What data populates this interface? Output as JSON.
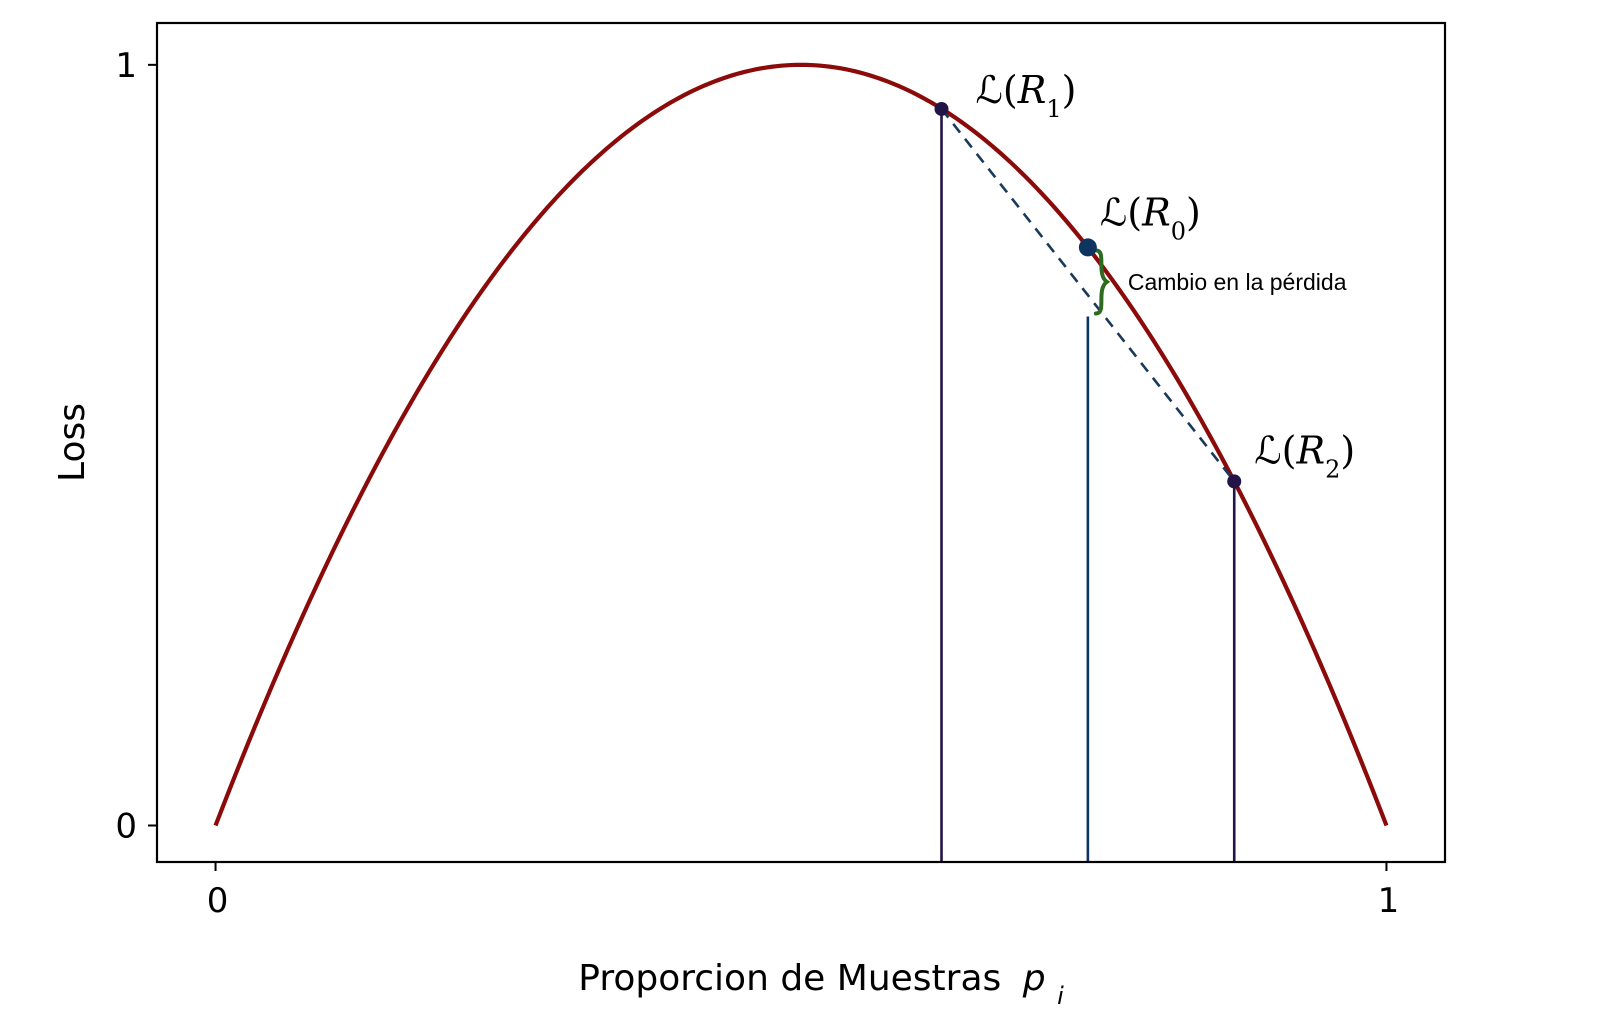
{
  "chart_data": {
    "type": "line",
    "title": "",
    "xlabel": "Proporcion de Muestras",
    "xlabel_symbol": "p",
    "xlabel_subscript": "i",
    "ylabel": "Loss",
    "xlim": [
      -0.05,
      1.05
    ],
    "ylim": [
      -0.048,
      1.055
    ],
    "xticks": [
      0,
      1
    ],
    "xtick_labels": [
      "0",
      "1"
    ],
    "yticks": [
      0,
      1
    ],
    "ytick_labels": [
      "0",
      "1"
    ],
    "grid": false,
    "series": [
      {
        "name": "Loss curve",
        "function": "4p(1-p)",
        "x_range": [
          0,
          1
        ],
        "color": "#8b0a0a"
      }
    ],
    "points": [
      {
        "id": "R1",
        "symbol": "ℒ",
        "paren_open": "(",
        "var": "R",
        "sub": "1",
        "paren_close": ")",
        "x": 0.62,
        "y": 0.942,
        "color": "#231447"
      },
      {
        "id": "R0",
        "symbol": "ℒ",
        "paren_open": "(",
        "var": "R",
        "sub": "0",
        "paren_close": ")",
        "x": 0.745,
        "y": 0.76,
        "color": "#0d3560"
      },
      {
        "id": "R2",
        "symbol": "ℒ",
        "paren_open": "(",
        "var": "R",
        "sub": "2",
        "paren_close": ")",
        "x": 0.87,
        "y": 0.4524,
        "color": "#231447"
      }
    ],
    "chord": {
      "from": "R1",
      "to": "R2",
      "style": "dashed",
      "color": "#1a3a5c"
    },
    "vertical_lines": [
      {
        "x": 0.62,
        "y_top": 0.942,
        "color": "#231447"
      },
      {
        "x": 0.745,
        "y_top": 0.6692,
        "color": "#0d3560"
      },
      {
        "x": 0.87,
        "y_top": 0.4524,
        "color": "#231447"
      }
    ],
    "brace": {
      "x": 0.745,
      "y_from": 0.6692,
      "y_to": 0.76,
      "color": "#2e6a1f",
      "label": "Cambio en la pérdida"
    }
  }
}
